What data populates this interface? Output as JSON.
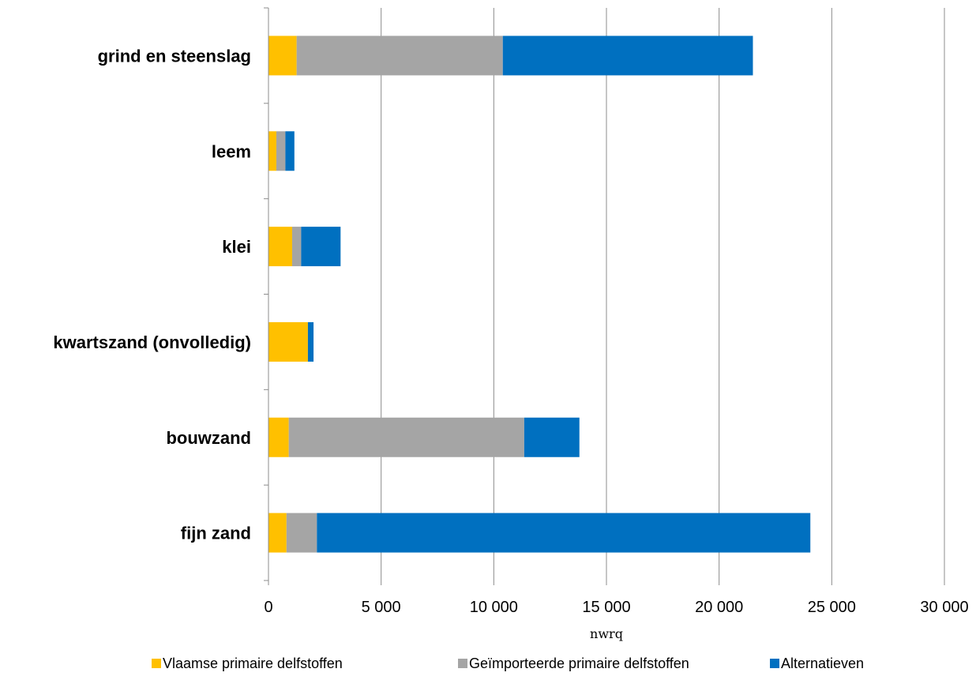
{
  "chart_data": {
    "type": "bar",
    "orientation": "horizontal",
    "stacked": true,
    "categories": [
      "grind en steenslag",
      "leem",
      "klei",
      "kwartszand (onvolledig)",
      "bouwzand",
      "fijn zand"
    ],
    "series": [
      {
        "name": "Vlaamse primaire delfstoffen",
        "color": "#FFC000",
        "values": [
          1250,
          350,
          1050,
          1750,
          900,
          800
        ]
      },
      {
        "name": "Geïmporteerde primaire delfstoffen",
        "color": "#A5A5A5",
        "values": [
          9150,
          400,
          400,
          0,
          10450,
          1350
        ]
      },
      {
        "name": "Alternatieven",
        "color": "#0070C0",
        "values": [
          11100,
          400,
          1750,
          250,
          2450,
          21900
        ]
      }
    ],
    "xlabel": "nwrq",
    "xlim": [
      0,
      30000
    ],
    "xticks": [
      0,
      5000,
      10000,
      15000,
      20000,
      25000,
      30000
    ],
    "xtick_labels": [
      "0",
      "5 000",
      "10 000",
      "15 000",
      "20 000",
      "25 000",
      "30 000"
    ],
    "grid": "vertical",
    "legend_position": "bottom"
  }
}
